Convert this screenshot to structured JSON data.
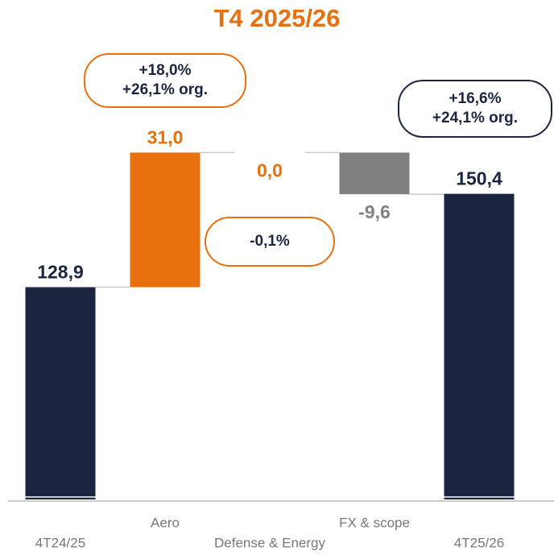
{
  "chart_data": {
    "type": "waterfall",
    "title": "T4 2025/26",
    "categories": [
      "4T24/25",
      "Aero",
      "Defense & Energy",
      "FX & scope",
      "4T25/26"
    ],
    "values": [
      128.9,
      31.0,
      0.0,
      -9.6,
      150.4
    ],
    "value_labels": [
      "128,9",
      "31,0",
      "0,0",
      "-9,6",
      "150,4"
    ],
    "measure": [
      "absolute",
      "relative",
      "relative",
      "relative",
      "total"
    ],
    "colors": [
      "#1b2540",
      "#e8700f",
      "#e8700f",
      "#808080",
      "#1b2540"
    ],
    "annotations": [
      null,
      [
        "+18,0%",
        "+26,1% org."
      ],
      [
        "-0,1%"
      ],
      null,
      [
        "+16,6%",
        "+24,1% org."
      ]
    ],
    "ylim": [
      80,
      170
    ]
  }
}
